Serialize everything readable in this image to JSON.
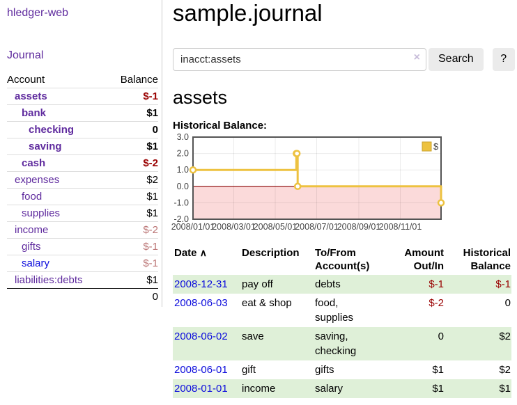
{
  "app": {
    "brand": "hledger-web",
    "nav_journal": "Journal"
  },
  "colors": {
    "link_visited_purple": "#5f2b9e",
    "link_new_blue": "#0b0bdc",
    "negative_strong": "#990000",
    "negative_muted": "#bb7575",
    "row_stripe_green": "#dff0d8",
    "series_gold": "#edc240",
    "negative_region_pink": "#fbdada",
    "zero_line_maroon": "#880000"
  },
  "sidebar": {
    "account_header": "Account",
    "balance_header": "Balance",
    "accounts": [
      {
        "label": "assets",
        "level": 1,
        "bold": true,
        "balance": "$-1",
        "balance_class": "neg",
        "link": "visited"
      },
      {
        "label": "bank",
        "level": 2,
        "bold": true,
        "balance": "$1",
        "balance_class": "",
        "link": "visited"
      },
      {
        "label": "checking",
        "level": 3,
        "bold": true,
        "balance": "0",
        "balance_class": "",
        "link": "visited"
      },
      {
        "label": "saving",
        "level": 3,
        "bold": true,
        "balance": "$1",
        "balance_class": "",
        "link": "visited"
      },
      {
        "label": "cash",
        "level": 2,
        "bold": true,
        "balance": "$-2",
        "balance_class": "neg",
        "link": "visited"
      },
      {
        "label": "expenses",
        "level": 1,
        "bold": false,
        "balance": "$2",
        "balance_class": "",
        "link": "visited"
      },
      {
        "label": "food",
        "level": 2,
        "bold": false,
        "balance": "$1",
        "balance_class": "",
        "link": "visited"
      },
      {
        "label": "supplies",
        "level": 2,
        "bold": false,
        "balance": "$1",
        "balance_class": "",
        "link": "visited"
      },
      {
        "label": "income",
        "level": 1,
        "bold": false,
        "balance": "$-2",
        "balance_class": "negm",
        "link": "visited"
      },
      {
        "label": "gifts",
        "level": 2,
        "bold": false,
        "balance": "$-1",
        "balance_class": "negm",
        "link": "visited"
      },
      {
        "label": "salary",
        "level": 2,
        "bold": false,
        "balance": "$-1",
        "balance_class": "negm",
        "link": "new"
      },
      {
        "label": "liabilities:debts",
        "level": 1,
        "bold": false,
        "balance": "$1",
        "balance_class": "",
        "link": "visited"
      }
    ],
    "total": "0"
  },
  "main": {
    "title": "sample.journal",
    "search": {
      "value": "inacct:assets",
      "clear_icon": "×",
      "button_label": "Search",
      "help_label": "?"
    },
    "account_heading": "assets"
  },
  "chart_data": {
    "type": "line",
    "title": "Historical Balance:",
    "step": true,
    "grid": true,
    "legend_position": "top-right",
    "x_range": [
      "2008-01-01",
      "2008-12-31"
    ],
    "ylim": [
      -2,
      3
    ],
    "y_ticks": [
      3.0,
      2.0,
      1.0,
      0.0,
      -1.0,
      -2.0
    ],
    "x_ticks": [
      {
        "label": "2008/01/01",
        "date": "2008-01-01"
      },
      {
        "label": "2008/03/01",
        "date": "2008-03-01"
      },
      {
        "label": "2008/05/01",
        "date": "2008-05-01"
      },
      {
        "label": "2008/07/01",
        "date": "2008-07-01"
      },
      {
        "label": "2008/09/01",
        "date": "2008-09-01"
      },
      {
        "label": "2008/11/01",
        "date": "2008-11-01"
      }
    ],
    "series": [
      {
        "name": "$",
        "color": "#edc240",
        "points": [
          {
            "date": "2008-01-01",
            "value": 1
          },
          {
            "date": "2008-06-01",
            "value": 2
          },
          {
            "date": "2008-06-02",
            "value": 2
          },
          {
            "date": "2008-06-03",
            "value": 0
          },
          {
            "date": "2008-12-31",
            "value": -1
          }
        ]
      }
    ],
    "negative_region_color": "#fbdada",
    "zero_line_color": "#880000"
  },
  "register": {
    "headers": [
      "Date",
      "Description",
      "To/From Account(s)",
      "Amount Out/In",
      "Historical Balance"
    ],
    "sort_icon": "∧",
    "rows": [
      {
        "date": "2008-12-31",
        "description": "pay off",
        "accounts": "debts",
        "amount": "$-1",
        "amount_negative": true,
        "balance": "$-1",
        "balance_negative": true
      },
      {
        "date": "2008-06-03",
        "description": "eat & shop",
        "accounts": "food, supplies",
        "amount": "$-2",
        "amount_negative": true,
        "balance": "0",
        "balance_negative": false
      },
      {
        "date": "2008-06-02",
        "description": "save",
        "accounts": "saving, checking",
        "amount": "0",
        "amount_negative": false,
        "balance": "$2",
        "balance_negative": false
      },
      {
        "date": "2008-06-01",
        "description": "gift",
        "accounts": "gifts",
        "amount": "$1",
        "amount_negative": false,
        "balance": "$2",
        "balance_negative": false
      },
      {
        "date": "2008-01-01",
        "description": "income",
        "accounts": "salary",
        "amount": "$1",
        "amount_negative": false,
        "balance": "$1",
        "balance_negative": false
      }
    ]
  }
}
